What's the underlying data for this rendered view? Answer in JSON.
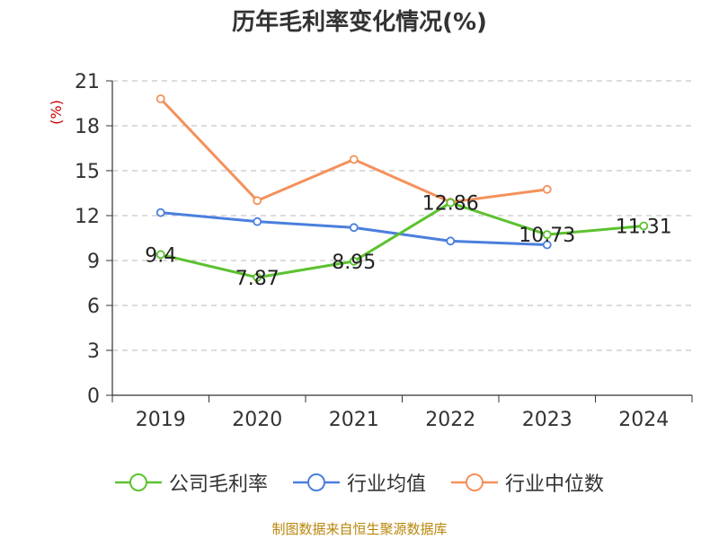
{
  "title": "历年毛利率变化情况(%)",
  "source": "制图数据来自恒生聚源数据库",
  "chart_data": {
    "type": "line",
    "categories": [
      "2019",
      "2020",
      "2021",
      "2022",
      "2023",
      "2024"
    ],
    "ylabel": "(%)",
    "ylim": [
      0,
      21
    ],
    "yticks": [
      "0",
      "3",
      "6",
      "9",
      "12",
      "15",
      "18",
      "21"
    ],
    "grid": true,
    "legend_position": "bottom",
    "series": [
      {
        "name": "公司毛利率",
        "color": "#5cc22f",
        "values": [
          9.4,
          7.87,
          8.95,
          12.86,
          10.73,
          11.31
        ],
        "labels": [
          "9.4",
          "7.87",
          "8.95",
          "12.86",
          "10.73",
          "11.31"
        ]
      },
      {
        "name": "行业均值",
        "color": "#4b7fde",
        "values": [
          12.2,
          11.6,
          11.2,
          10.3,
          10.05,
          null
        ]
      },
      {
        "name": "行业中位数",
        "color": "#f4915b",
        "values": [
          19.8,
          13.0,
          15.75,
          12.9,
          13.75,
          null
        ]
      }
    ]
  }
}
